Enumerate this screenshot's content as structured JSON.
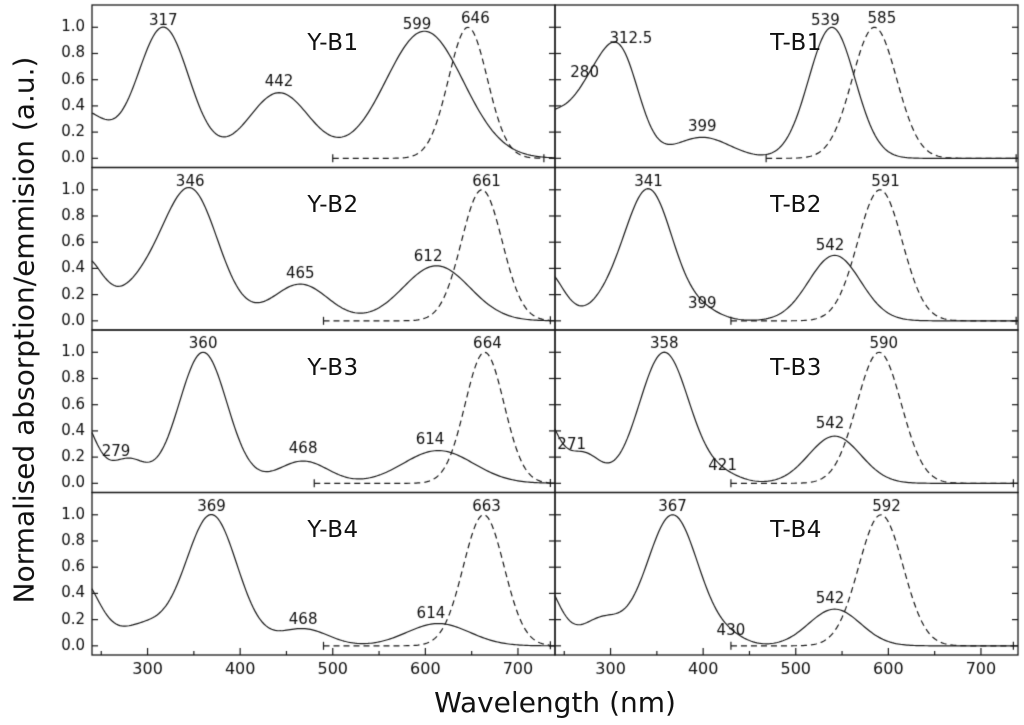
{
  "figure": {
    "background": "#ffffff",
    "line_color": "#1a1a1a",
    "text_color": "#111111"
  },
  "chart_data": {
    "type": "line",
    "title": "",
    "xlabel": "Wavelength (nm)",
    "ylabel": "Normalised absorption/emmision (a.u.)",
    "x_range": [
      240,
      740
    ],
    "x_ticks": [
      300,
      400,
      500,
      600,
      700
    ],
    "x_minor_ticks": [
      250,
      350,
      450,
      550,
      650
    ],
    "y_ticks": [
      0.0,
      0.2,
      0.4,
      0.6,
      0.8,
      1.0
    ],
    "ylim": [
      0,
      1.0
    ],
    "grid": "off",
    "legend": "none",
    "series_styles": [
      {
        "name": "absorption",
        "style": "solid"
      },
      {
        "name": "emission",
        "style": "dashed"
      }
    ],
    "layout": {
      "rows": 4,
      "cols": 2
    },
    "panels": [
      {
        "label": "Y-B1",
        "row": 0,
        "col": 0,
        "absorption_peaks_nm": [
          317,
          442,
          599
        ],
        "emission_peak_nm": 646,
        "absorption_model": [
          [
            228,
            0.36,
            26
          ],
          [
            317,
            1.0,
            28
          ],
          [
            442,
            0.5,
            33
          ],
          [
            599,
            0.97,
            42
          ]
        ],
        "emission_model": [
          [
            646,
            1.0,
            21
          ]
        ],
        "emission_range_nm": [
          500,
          728
        ],
        "annotations": [
          {
            "text": "317",
            "x": 317,
            "y": 1.02
          },
          {
            "text": "442",
            "x": 442,
            "y": 0.55
          },
          {
            "text": "599",
            "x": 591,
            "y": 0.99
          },
          {
            "text": "646",
            "x": 654,
            "y": 1.03
          }
        ]
      },
      {
        "label": "T-B1",
        "row": 0,
        "col": 1,
        "absorption_peaks_nm": [
          280,
          312.5,
          399,
          539
        ],
        "emission_peak_nm": 585,
        "absorption_model": [
          [
            232,
            0.3,
            22
          ],
          [
            280,
            0.48,
            22
          ],
          [
            312.5,
            0.68,
            20
          ],
          [
            399,
            0.16,
            30
          ],
          [
            539,
            1.0,
            25
          ]
        ],
        "emission_model": [
          [
            585,
            1.0,
            24
          ]
        ],
        "emission_range_nm": [
          468,
          738
        ],
        "annotations": [
          {
            "text": "280",
            "x": 272,
            "y": 0.62
          },
          {
            "text": "312.5",
            "x": 322,
            "y": 0.88
          },
          {
            "text": "399",
            "x": 399,
            "y": 0.21
          },
          {
            "text": "539",
            "x": 532,
            "y": 1.02
          },
          {
            "text": "585",
            "x": 593,
            "y": 1.03
          }
        ]
      },
      {
        "label": "Y-B2",
        "row": 1,
        "col": 0,
        "absorption_peaks_nm": [
          346,
          465,
          612
        ],
        "emission_peak_nm": 661,
        "absorption_model": [
          [
            230,
            0.48,
            21
          ],
          [
            290,
            0.2,
            25
          ],
          [
            346,
            1.0,
            30
          ],
          [
            465,
            0.28,
            30
          ],
          [
            612,
            0.42,
            36
          ]
        ],
        "emission_model": [
          [
            661,
            1.0,
            22
          ]
        ],
        "emission_range_nm": [
          490,
          735
        ],
        "annotations": [
          {
            "text": "346",
            "x": 346,
            "y": 1.03
          },
          {
            "text": "465",
            "x": 465,
            "y": 0.33
          },
          {
            "text": "612",
            "x": 603,
            "y": 0.46
          },
          {
            "text": "661",
            "x": 666,
            "y": 1.03
          }
        ]
      },
      {
        "label": "T-B2",
        "row": 1,
        "col": 1,
        "absorption_peaks_nm": [
          341,
          399,
          542
        ],
        "emission_peak_nm": 591,
        "absorption_model": [
          [
            228,
            0.4,
            20
          ],
          [
            295,
            0.1,
            20
          ],
          [
            341,
            1.0,
            26
          ],
          [
            399,
            0.07,
            20
          ],
          [
            542,
            0.5,
            28
          ]
        ],
        "emission_model": [
          [
            591,
            1.0,
            24
          ]
        ],
        "emission_range_nm": [
          430,
          738
        ],
        "annotations": [
          {
            "text": "341",
            "x": 341,
            "y": 1.03
          },
          {
            "text": "399",
            "x": 399,
            "y": 0.1
          },
          {
            "text": "542",
            "x": 537,
            "y": 0.54
          },
          {
            "text": "591",
            "x": 597,
            "y": 1.03
          }
        ]
      },
      {
        "label": "Y-B3",
        "row": 2,
        "col": 0,
        "absorption_peaks_nm": [
          279,
          360,
          468,
          614
        ],
        "emission_peak_nm": 664,
        "absorption_model": [
          [
            224,
            0.55,
            18
          ],
          [
            279,
            0.18,
            18
          ],
          [
            360,
            1.0,
            26
          ],
          [
            468,
            0.17,
            27
          ],
          [
            614,
            0.25,
            38
          ]
        ],
        "emission_model": [
          [
            664,
            1.0,
            21
          ]
        ],
        "emission_range_nm": [
          480,
          735
        ],
        "annotations": [
          {
            "text": "279",
            "x": 266,
            "y": 0.21
          },
          {
            "text": "360",
            "x": 360,
            "y": 1.03
          },
          {
            "text": "468",
            "x": 468,
            "y": 0.23
          },
          {
            "text": "614",
            "x": 605,
            "y": 0.3
          },
          {
            "text": "664",
            "x": 667,
            "y": 1.03
          }
        ]
      },
      {
        "label": "T-B3",
        "row": 2,
        "col": 1,
        "absorption_peaks_nm": [
          271,
          358,
          421,
          542
        ],
        "emission_peak_nm": 590,
        "absorption_model": [
          [
            222,
            0.6,
            18
          ],
          [
            271,
            0.22,
            18
          ],
          [
            358,
            1.0,
            27
          ],
          [
            421,
            0.06,
            20
          ],
          [
            542,
            0.36,
            28
          ]
        ],
        "emission_model": [
          [
            590,
            1.0,
            24
          ]
        ],
        "emission_range_nm": [
          430,
          735
        ],
        "annotations": [
          {
            "text": "271",
            "x": 258,
            "y": 0.26
          },
          {
            "text": "358",
            "x": 358,
            "y": 1.03
          },
          {
            "text": "421",
            "x": 421,
            "y": 0.1
          },
          {
            "text": "542",
            "x": 537,
            "y": 0.42
          },
          {
            "text": "590",
            "x": 595,
            "y": 1.03
          }
        ]
      },
      {
        "label": "Y-B4",
        "row": 3,
        "col": 0,
        "absorption_peaks_nm": [
          369,
          468,
          614
        ],
        "emission_peak_nm": 663,
        "absorption_model": [
          [
            224,
            0.55,
            22
          ],
          [
            295,
            0.15,
            25
          ],
          [
            369,
            1.0,
            28
          ],
          [
            468,
            0.13,
            27
          ],
          [
            614,
            0.17,
            34
          ]
        ],
        "emission_model": [
          [
            663,
            1.0,
            22
          ]
        ],
        "emission_range_nm": [
          490,
          735
        ],
        "annotations": [
          {
            "text": "369",
            "x": 369,
            "y": 1.03
          },
          {
            "text": "468",
            "x": 468,
            "y": 0.17
          },
          {
            "text": "614",
            "x": 606,
            "y": 0.21
          },
          {
            "text": "663",
            "x": 666,
            "y": 1.03
          }
        ]
      },
      {
        "label": "T-B4",
        "row": 3,
        "col": 1,
        "absorption_peaks_nm": [
          367,
          430,
          542
        ],
        "emission_peak_nm": 592,
        "absorption_model": [
          [
            222,
            0.55,
            20
          ],
          [
            290,
            0.2,
            22
          ],
          [
            367,
            1.0,
            28
          ],
          [
            430,
            0.05,
            18
          ],
          [
            542,
            0.28,
            28
          ]
        ],
        "emission_model": [
          [
            592,
            1.0,
            24
          ]
        ],
        "emission_range_nm": [
          430,
          735
        ],
        "annotations": [
          {
            "text": "367",
            "x": 367,
            "y": 1.03
          },
          {
            "text": "430",
            "x": 430,
            "y": 0.08
          },
          {
            "text": "542",
            "x": 537,
            "y": 0.33
          },
          {
            "text": "592",
            "x": 598,
            "y": 1.03
          }
        ]
      }
    ]
  }
}
